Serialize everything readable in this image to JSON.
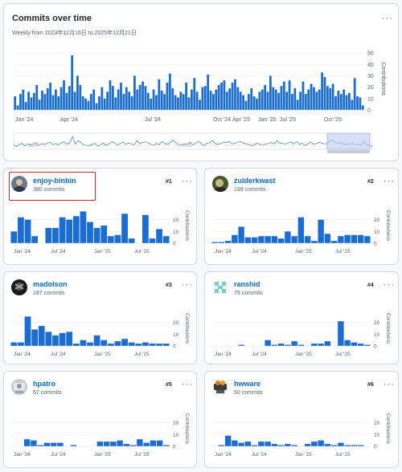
{
  "main": {
    "title": "Commits over time",
    "subtitle": "Weekly from 2023年12月16日 to 2025年12月21日",
    "menu": "···"
  },
  "chart_data": [
    {
      "type": "bar",
      "ylabel": "Contributions",
      "yticks": [
        0,
        10,
        20,
        30,
        40,
        50
      ],
      "ylim": [
        0,
        55
      ],
      "x_tick_labels": [
        "Jan '24",
        "Apr '24",
        "Jul '24",
        "Oct '24",
        "Jan '25",
        "Apr '25",
        "Jul '25",
        "Oct '25"
      ],
      "color": "#1a6dd4",
      "values": [
        12,
        4,
        14,
        18,
        7,
        16,
        11,
        15,
        22,
        9,
        17,
        14,
        19,
        24,
        13,
        18,
        12,
        20,
        26,
        15,
        21,
        48,
        16,
        30,
        22,
        12,
        10,
        8,
        14,
        18,
        6,
        12,
        20,
        10,
        16,
        26,
        21,
        11,
        18,
        24,
        14,
        20,
        16,
        12,
        30,
        18,
        22,
        25,
        21,
        15,
        10,
        18,
        13,
        27,
        17,
        14,
        24,
        32,
        19,
        13,
        11,
        16,
        14,
        24,
        11,
        18,
        28,
        16,
        9,
        20,
        21,
        31,
        17,
        14,
        18,
        22,
        24,
        26,
        16,
        19,
        24,
        27,
        20,
        16,
        13,
        8,
        14,
        19,
        12,
        10,
        16,
        18,
        22,
        16,
        30,
        20,
        18,
        15,
        21,
        25,
        16,
        26,
        14,
        19,
        9,
        16,
        25,
        14,
        18,
        23,
        20,
        16,
        18,
        33,
        29,
        21,
        19,
        23,
        12,
        17,
        14,
        18,
        13,
        15,
        9,
        28,
        12,
        11,
        4
      ]
    },
    {
      "type": "line",
      "role": "range-overview",
      "x_tick_labels": [
        "2024",
        "2025"
      ]
    },
    {
      "type": "bar",
      "title": "enjoy-binbin",
      "ylabel": "Contributions",
      "yticks": [
        0,
        10,
        20
      ],
      "ylim": [
        0,
        30
      ],
      "x_tick_labels": [
        "Jan '24",
        "Jul '24",
        "Jan '25",
        "Jul '25"
      ],
      "values": [
        10,
        22,
        20,
        6,
        0,
        13,
        13,
        22,
        20,
        23,
        27,
        18,
        13,
        15,
        6,
        7,
        25,
        4,
        0,
        24,
        4,
        12,
        6
      ]
    },
    {
      "type": "bar",
      "title": "zuiderkwast",
      "ylabel": "Contributions",
      "yticks": [
        0,
        10,
        20
      ],
      "ylim": [
        0,
        30
      ],
      "x_tick_labels": [
        "Jan '24",
        "Jul '24",
        "Jan '25",
        "Jul '25"
      ],
      "values": [
        1,
        1,
        2,
        7,
        14,
        5,
        5,
        6,
        6,
        6,
        4,
        10,
        6,
        22,
        6,
        2,
        20,
        8,
        2,
        6,
        7,
        7,
        7,
        6
      ]
    },
    {
      "type": "bar",
      "title": "madolson",
      "ylabel": "Contributions",
      "yticks": [
        0,
        10,
        20
      ],
      "ylim": [
        0,
        30
      ],
      "x_tick_labels": [
        "Jan '24",
        "Jul '24",
        "Jan '25",
        "Jul '25"
      ],
      "values": [
        3,
        3,
        25,
        14,
        17,
        12,
        9,
        11,
        12,
        2,
        5,
        3,
        9,
        5,
        2,
        4,
        6,
        3,
        2,
        3,
        2,
        2,
        2
      ]
    },
    {
      "type": "bar",
      "title": "ranshid",
      "ylabel": "Contributions",
      "yticks": [
        0,
        10,
        20
      ],
      "ylim": [
        0,
        30
      ],
      "x_tick_labels": [
        "Jan '24",
        "Jul '24",
        "Jan '25",
        "Jul '25"
      ],
      "values": [
        0,
        0,
        0,
        0,
        1,
        0,
        0,
        0,
        5,
        1,
        2,
        1,
        4,
        1,
        0,
        2,
        2,
        4,
        0,
        21,
        5,
        3,
        2,
        1
      ]
    },
    {
      "type": "bar",
      "title": "hpatro",
      "ylabel": "Contributions",
      "yticks": [
        0,
        10,
        20
      ],
      "ylim": [
        0,
        30
      ],
      "x_tick_labels": [
        "Jan '24",
        "Jul '24",
        "Jan '25",
        "Jul '25"
      ],
      "values": [
        0,
        0,
        6,
        5,
        1,
        3,
        3,
        3,
        0,
        1,
        0,
        0,
        0,
        4,
        4,
        4,
        5,
        2,
        1,
        6,
        3,
        5,
        5,
        1
      ]
    },
    {
      "type": "bar",
      "title": "hwware",
      "ylabel": "Contributions",
      "yticks": [
        0,
        10,
        20
      ],
      "ylim": [
        0,
        30
      ],
      "x_tick_labels": [
        "Jan '24",
        "Jul '24",
        "Jan '25",
        "Jul '25"
      ],
      "values": [
        0,
        1,
        9,
        5,
        3,
        4,
        1,
        4,
        4,
        2,
        1,
        2,
        1,
        0,
        2,
        4,
        5,
        2,
        1,
        3,
        1,
        1,
        1,
        0
      ]
    }
  ],
  "contributors": [
    {
      "name": "enjoy-binbin",
      "commits": "360 commits",
      "rank": "#1",
      "menu": "···",
      "avatar": "avatar-photo"
    },
    {
      "name": "zuiderkwast",
      "commits": "199 commits",
      "rank": "#2",
      "menu": "···",
      "avatar": "avatar-photo"
    },
    {
      "name": "madolson",
      "commits": "187 commits",
      "rank": "#3",
      "menu": "···",
      "avatar": "avatar-photo"
    },
    {
      "name": "ranshid",
      "commits": "79 commits",
      "rank": "#4",
      "menu": "···",
      "avatar": "identicon"
    },
    {
      "name": "hpatro",
      "commits": "67 commits",
      "rank": "#5",
      "menu": "···",
      "avatar": "avatar-photo"
    },
    {
      "name": "hwware",
      "commits": "50 commits",
      "rank": "#6",
      "menu": "···",
      "avatar": "avatar-photo"
    }
  ],
  "colors": {
    "bar": "#1a6dd4",
    "highlight": "#d1242f",
    "link": "#0969da",
    "selection": "#b6c7ee"
  }
}
